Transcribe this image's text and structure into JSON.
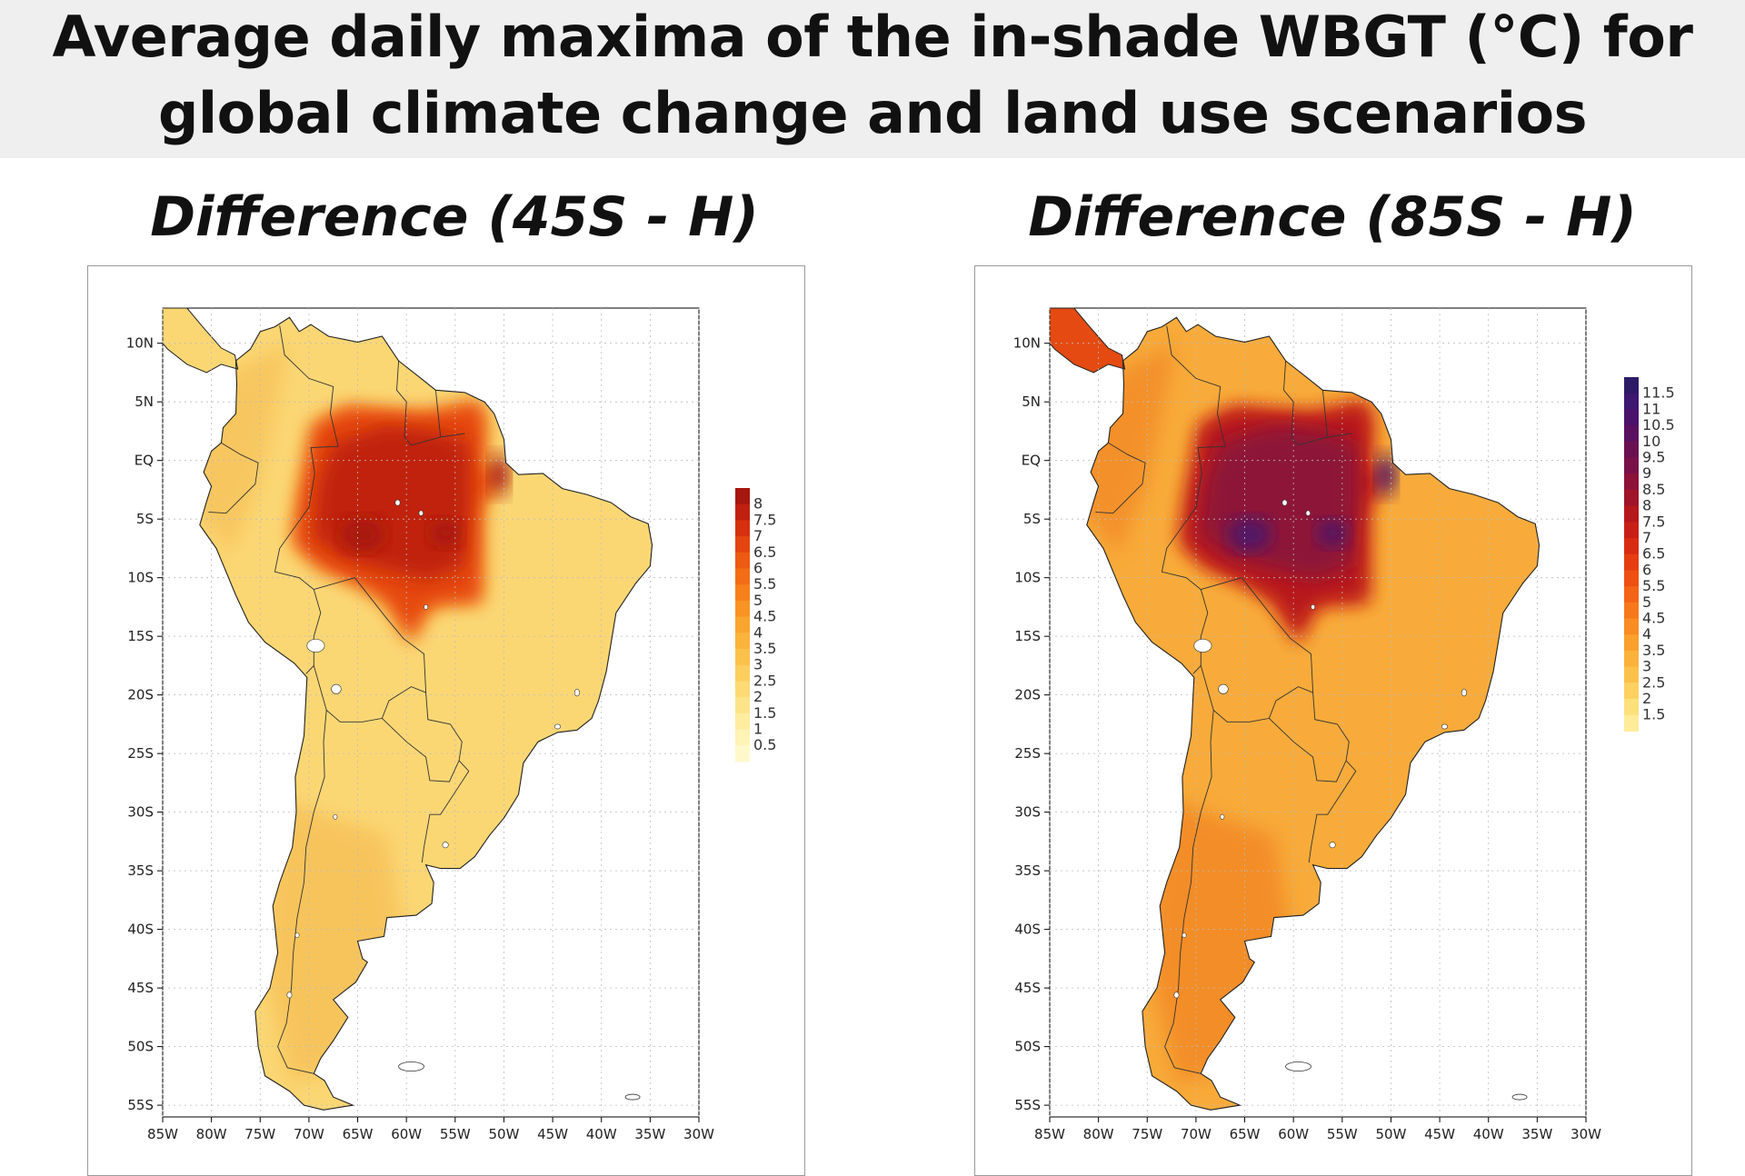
{
  "title": {
    "line1": "Average daily maxima of the in-shade WBGT (°C) for",
    "line2": "global climate change and land use scenarios"
  },
  "lat_labels": [
    "10N",
    "5N",
    "EQ",
    "5S",
    "10S",
    "15S",
    "20S",
    "25S",
    "30S",
    "35S",
    "40S",
    "45S",
    "50S",
    "55S"
  ],
  "lon_labels": [
    "85W",
    "80W",
    "75W",
    "70W",
    "65W",
    "60W",
    "55W",
    "50W",
    "45W",
    "40W",
    "35W",
    "30W"
  ],
  "panels": [
    {
      "title": "Difference (45S - H)",
      "legend_labels": [
        "8",
        "7.5",
        "7",
        "6.5",
        "6",
        "5.5",
        "5",
        "4.5",
        "4",
        "3.5",
        "3",
        "2.5",
        "2",
        "1.5",
        "1",
        "0.5"
      ],
      "legend_colors": [
        "#a5170f",
        "#c0200f",
        "#d5300f",
        "#e4450f",
        "#ed5a12",
        "#f46c16",
        "#f7801b",
        "#f99322",
        "#faa52d",
        "#fbb43a",
        "#fbc14b",
        "#fcce5e",
        "#fdda73",
        "#fee488",
        "#feed9f",
        "#fff3b6",
        "#fff8cb"
      ],
      "fill": {
        "base": "#fbd774",
        "south": "#f7c25a",
        "hot_edge": "#f7801b",
        "hot": "#e4450f",
        "core": "#c0200f",
        "peak": "#a5170f"
      }
    },
    {
      "title": "Difference (85S - H)",
      "legend_labels": [
        "11.5",
        "11",
        "10.5",
        "10",
        "9.5",
        "9",
        "8.5",
        "8",
        "7.5",
        "7",
        "6.5",
        "6",
        "5.5",
        "5",
        "4.5",
        "4",
        "3.5",
        "3",
        "2.5",
        "2",
        "1.5"
      ],
      "legend_colors": [
        "#2d1a66",
        "#3d1770",
        "#4b126b",
        "#5a1060",
        "#6a1052",
        "#7a1048",
        "#8d1238",
        "#a0142a",
        "#b5181c",
        "#c72016",
        "#d82c12",
        "#e53d10",
        "#ee5012",
        "#f46416",
        "#f7781b",
        "#f98c22",
        "#faa02c",
        "#fbb23a",
        "#fcc14b",
        "#fdd160",
        "#fee07a",
        "#ffeb98"
      ],
      "fill": {
        "base": "#f8ab3a",
        "south": "#f28a26",
        "hot_edge": "#e44a12",
        "hot": "#b5181c",
        "core": "#8d1238",
        "peak": "#4b126b"
      }
    }
  ]
}
